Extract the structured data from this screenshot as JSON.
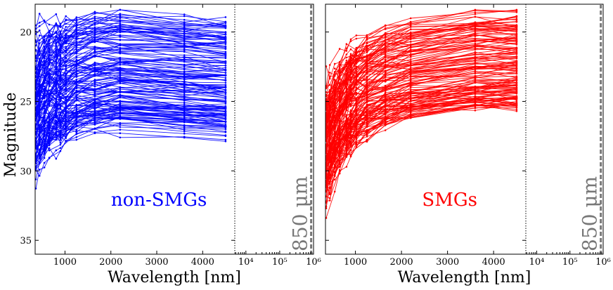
{
  "chart_data": [
    {
      "type": "line",
      "name": "non-SMGs",
      "annotation": "non-SMGs",
      "color": "#0000ff",
      "xlabel": "Wavelength [nm]",
      "ylabel": "Magnitude",
      "linear_xlim": [
        350,
        4700
      ],
      "log_xlim": [
        4700,
        1000000
      ],
      "ylim": [
        36,
        18
      ],
      "linear_xticks": [
        "1000",
        "2000",
        "3000",
        "4000"
      ],
      "log_xticks": [
        "10⁴",
        "10⁵",
        "10⁶"
      ],
      "yticks": [
        "20",
        "25",
        "30",
        "35"
      ],
      "bands_nm": [
        365,
        445,
        551,
        658,
        806,
        900,
        1020,
        1250,
        1650,
        2200,
        3600,
        4500
      ],
      "band_line_at_nm": 850000,
      "band_line_label": "850 μm",
      "divider_at_nm": 4700,
      "n_sources": 150,
      "template_magnitudes": [
        25.4,
        25.0,
        24.6,
        24.3,
        24.1,
        24.0,
        23.9,
        23.5,
        23.3,
        23.2,
        23.5,
        23.7
      ],
      "faint_end_range": [
        18.9,
        27.7
      ],
      "scatter_level": 1.3
    },
    {
      "type": "line",
      "name": "SMGs",
      "annotation": "SMGs",
      "color": "#ff0000",
      "xlabel": "Wavelength [nm]",
      "linear_xlim": [
        350,
        4700
      ],
      "log_xlim": [
        4700,
        1000000
      ],
      "ylim": [
        36,
        18
      ],
      "linear_xticks": [
        "1000",
        "2000",
        "3000",
        "4000"
      ],
      "log_xticks": [
        "10⁴",
        "10⁵",
        "10⁶"
      ],
      "bands_nm": [
        365,
        445,
        551,
        658,
        806,
        900,
        1020,
        1250,
        1650,
        2200,
        3600,
        4500
      ],
      "band_line_at_nm": 850000,
      "band_line_label": "850 μm",
      "divider_at_nm": 4700,
      "n_sources": 150,
      "template_magnitudes": [
        26.4,
        25.8,
        25.1,
        24.5,
        23.9,
        23.6,
        23.2,
        22.7,
        22.1,
        21.6,
        21.0,
        20.9
      ],
      "faint_end_range": [
        18.3,
        25.5
      ],
      "scatter_level": 1.5
    }
  ]
}
